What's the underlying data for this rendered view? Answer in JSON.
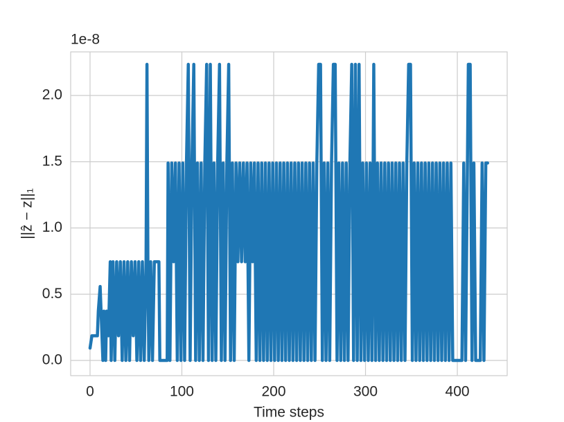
{
  "chart_data": {
    "type": "line",
    "offset_text": "1e-8",
    "x_label": "Time steps",
    "y_label": "||ẑ − z||₁",
    "color": "#1f77b4",
    "grid": true,
    "xlim": [
      -21.1,
      454.3
    ],
    "ylim": [
      -0.115,
      2.329
    ],
    "xticks": [
      0,
      100,
      200,
      300,
      400
    ],
    "yticks": [
      {
        "value": 0,
        "label": "0.0"
      },
      {
        "value": 0.5,
        "label": "0.5"
      },
      {
        "value": 1,
        "label": "1.0"
      },
      {
        "value": 1.5,
        "label": "1.5"
      },
      {
        "value": 2,
        "label": "2.0"
      }
    ],
    "x": [
      0,
      2,
      8,
      9,
      11,
      12,
      13,
      14,
      15,
      17,
      18,
      20,
      22,
      23,
      25,
      27,
      29,
      31,
      33,
      35,
      37,
      39,
      41,
      43,
      45,
      47,
      49,
      51,
      53,
      55,
      57,
      59,
      61,
      62,
      63,
      64,
      66,
      68,
      70,
      75,
      76,
      84,
      85,
      87,
      89,
      91,
      93,
      95,
      97,
      99,
      101,
      103,
      105,
      107,
      109,
      111,
      113,
      115,
      117,
      119,
      121,
      123,
      125,
      127,
      129,
      131,
      133,
      135,
      137,
      139,
      141,
      143,
      145,
      147,
      149,
      151,
      153,
      155,
      157,
      159,
      161,
      163,
      165,
      167,
      169,
      171,
      173,
      175,
      177,
      179,
      181,
      183,
      185,
      187,
      189,
      191,
      193,
      195,
      197,
      199,
      201,
      203,
      205,
      207,
      209,
      211,
      213,
      215,
      217,
      219,
      221,
      223,
      225,
      227,
      229,
      231,
      233,
      235,
      237,
      239,
      241,
      243,
      245,
      247,
      249,
      251,
      253,
      255,
      257,
      259,
      261,
      263,
      265,
      267,
      269,
      271,
      273,
      275,
      277,
      279,
      281,
      283,
      285,
      287,
      289,
      291,
      293,
      295,
      297,
      299,
      301,
      303,
      305,
      307,
      309,
      311,
      313,
      315,
      317,
      319,
      321,
      323,
      325,
      327,
      329,
      331,
      333,
      335,
      337,
      339,
      341,
      343,
      345,
      347,
      349,
      351,
      353,
      355,
      357,
      359,
      361,
      363,
      365,
      367,
      369,
      371,
      373,
      375,
      377,
      379,
      381,
      383,
      385,
      387,
      389,
      391,
      393,
      395,
      398,
      405,
      407,
      409,
      411,
      412,
      414,
      416,
      418,
      420,
      425,
      427,
      429,
      431,
      433
    ],
    "values": [
      0.093,
      0.186,
      0.186,
      0.372,
      0.558,
      0.372,
      0.186,
      0,
      0.372,
      0,
      0.372,
      0.186,
      0.745,
      0,
      0.745,
      0,
      0.745,
      0.186,
      0.745,
      0,
      0.745,
      0,
      0.745,
      0,
      0.745,
      0.186,
      0.745,
      0,
      0.745,
      0,
      0.745,
      0,
      0.745,
      2.235,
      0.745,
      0,
      0.745,
      0,
      0.745,
      0.745,
      0,
      0,
      1.49,
      0,
      1.49,
      0.745,
      1.49,
      0,
      1.49,
      0,
      1.49,
      0,
      1.49,
      2.235,
      0,
      1.49,
      2.235,
      0,
      1.49,
      0,
      1.49,
      0,
      1.49,
      2.235,
      0,
      2.235,
      0,
      1.49,
      0,
      1.49,
      2.235,
      0,
      1.49,
      0,
      1.49,
      2.235,
      0,
      1.49,
      0,
      1.49,
      0.745,
      1.49,
      0.745,
      1.49,
      0.745,
      1.49,
      0,
      1.49,
      0.745,
      1.49,
      0,
      1.49,
      0,
      1.49,
      0,
      1.49,
      0,
      1.49,
      0,
      1.49,
      0,
      1.49,
      0,
      1.49,
      0,
      1.49,
      0,
      1.49,
      0,
      1.49,
      0,
      1.49,
      0,
      1.49,
      0,
      1.49,
      0,
      1.49,
      0,
      1.49,
      0,
      1.49,
      0,
      1.49,
      2.235,
      2.235,
      0,
      1.49,
      0,
      1.49,
      0,
      1.49,
      2.235,
      2.235,
      0,
      1.49,
      0,
      1.49,
      0,
      1.49,
      0,
      1.49,
      2.235,
      0,
      2.235,
      0,
      2.235,
      0,
      1.49,
      0,
      1.49,
      0,
      1.49,
      0,
      2.235,
      0,
      1.49,
      0,
      1.49,
      0,
      1.49,
      0,
      1.49,
      0,
      1.49,
      0,
      1.49,
      0,
      1.49,
      0,
      1.49,
      0,
      1.49,
      2.235,
      2.235,
      0,
      1.49,
      0,
      1.49,
      0,
      1.49,
      0,
      1.49,
      0,
      1.49,
      0,
      1.49,
      0,
      1.49,
      0,
      1.49,
      0,
      1.49,
      0,
      1.49,
      0,
      1.49,
      0,
      0,
      0,
      1.49,
      0,
      1.49,
      2.235,
      2.235,
      0,
      1.49,
      0,
      0,
      1.49,
      0,
      1.49,
      1.49
    ]
  }
}
